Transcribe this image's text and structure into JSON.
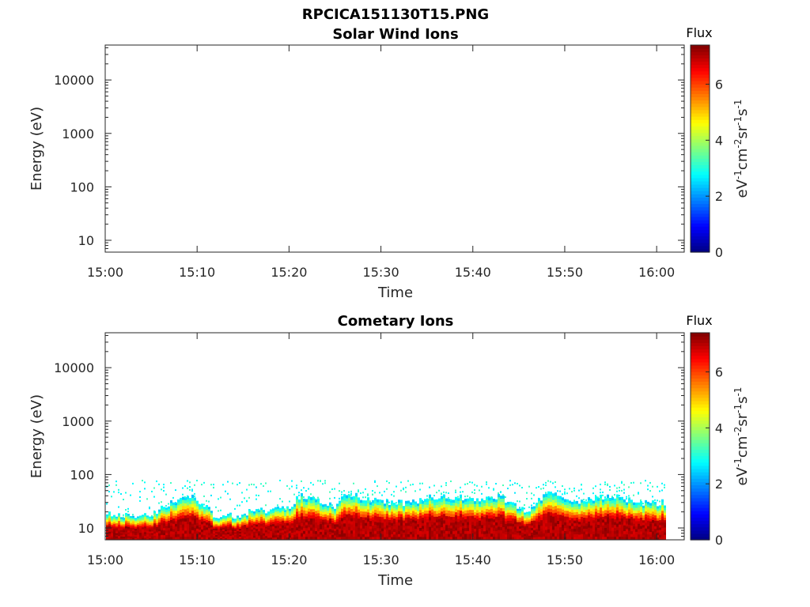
{
  "figure_title": "RPCICA151130T15.PNG",
  "chart_data": [
    {
      "type": "heatmap",
      "title": "Solar Wind Ions",
      "xlabel": "Time",
      "ylabel": "Energy (eV)",
      "x_ticks": [
        "15:00",
        "15:10",
        "15:20",
        "15:30",
        "15:40",
        "15:50",
        "16:00"
      ],
      "xlim": [
        "15:00",
        "16:03"
      ],
      "y_scale": "log",
      "y_ticks": [
        "10",
        "100",
        "1000",
        "10000"
      ],
      "ylim": [
        6,
        45000
      ],
      "colorbar": {
        "label": "Flux",
        "units": "eV-1cm-2sr-1s-1",
        "ticks": [
          "0",
          "2",
          "4",
          "6"
        ],
        "range": [
          0,
          7.4
        ],
        "colormap": "jet"
      },
      "data": []
    },
    {
      "type": "heatmap",
      "title": "Cometary Ions",
      "xlabel": "Time",
      "ylabel": "Energy (eV)",
      "x_ticks": [
        "15:00",
        "15:10",
        "15:20",
        "15:30",
        "15:40",
        "15:50",
        "16:00"
      ],
      "xlim": [
        "15:00",
        "16:03"
      ],
      "y_scale": "log",
      "y_ticks": [
        "10",
        "100",
        "1000",
        "10000"
      ],
      "ylim": [
        6,
        45000
      ],
      "colorbar": {
        "label": "Flux",
        "units": "eV-1cm-2sr-1s-1",
        "ticks": [
          "0",
          "2",
          "4",
          "6"
        ],
        "range": [
          0,
          7.4
        ],
        "colormap": "jet"
      },
      "data_end": "16:01",
      "peak_energy_ev": [
        [
          "15:00",
          18
        ],
        [
          "15:05",
          17
        ],
        [
          "15:09",
          40
        ],
        [
          "15:12",
          15
        ],
        [
          "15:16",
          20
        ],
        [
          "15:20",
          25
        ],
        [
          "15:21",
          40
        ],
        [
          "15:25",
          25
        ],
        [
          "15:26",
          45
        ],
        [
          "15:30",
          30
        ],
        [
          "15:33",
          30
        ],
        [
          "15:36",
          40
        ],
        [
          "15:40",
          35
        ],
        [
          "15:43",
          38
        ],
        [
          "15:46",
          18
        ],
        [
          "15:48",
          45
        ],
        [
          "15:51",
          30
        ],
        [
          "15:55",
          40
        ],
        [
          "15:58",
          30
        ],
        [
          "16:01",
          30
        ]
      ],
      "sparse_upper_energy_ev": 80
    }
  ]
}
